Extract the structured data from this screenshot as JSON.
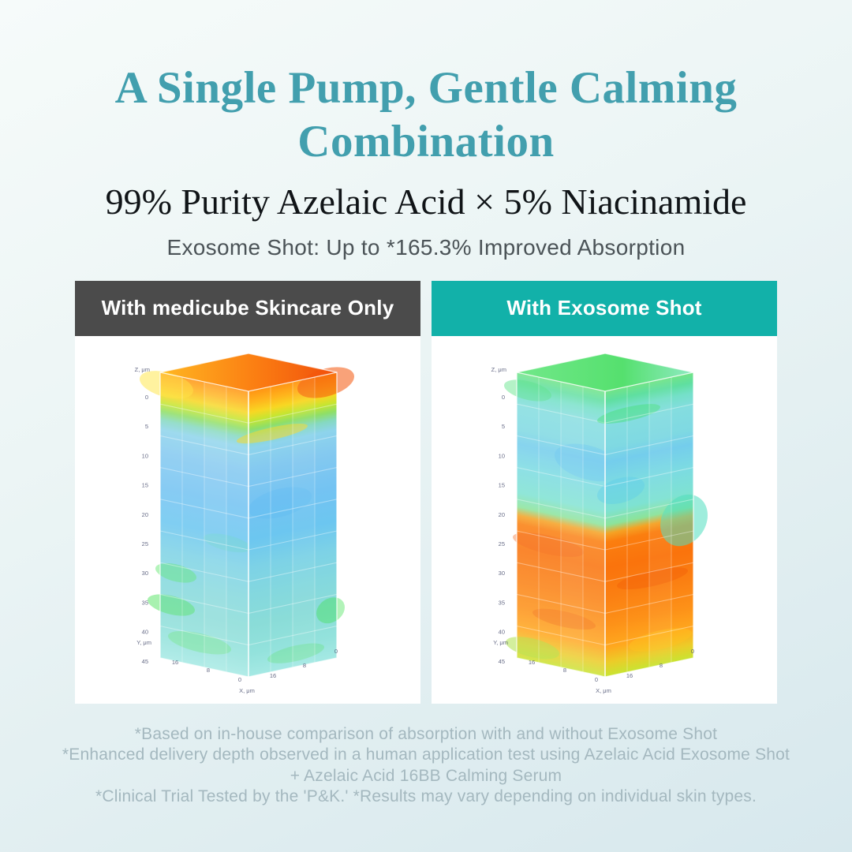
{
  "page": {
    "title_line1": "A Single Pump, Gentle Calming",
    "title_line2": "Combination",
    "subtitle": "99% Purity Azelaic Acid × 5% Niacinamide",
    "tagline": "Exosome Shot: Up to *165.3% Improved Absorption"
  },
  "colors": {
    "title_teal": "#429fae",
    "subtitle_black": "#101417",
    "tagline_gray": "#4b5357",
    "panel_left_header_bg": "#4b4b4b",
    "panel_right_header_bg": "#12b1a9",
    "header_text": "#ffffff",
    "panel_body_bg": "#ffffff",
    "footnote_gray": "#a4b8bf",
    "background_top": "#f6fbfa",
    "background_bottom": "#d7e8ed"
  },
  "panels": [
    {
      "label": "With medicube Skincare Only"
    },
    {
      "label": "With Exosome Shot"
    }
  ],
  "chart_data": [
    {
      "type": "heatmap",
      "title": "With medicube Skincare Only",
      "description": "3D skin-volume absorption map; ingredient concentration (warm colors) stays at the surface layer and upper 0-8 μm only",
      "axes": {
        "z_label": "Z, μm",
        "y_label": "Y, μm",
        "x_label": "X, μm",
        "z_ticks": [
          0,
          5,
          10,
          15,
          20,
          25,
          30,
          35,
          40,
          45
        ],
        "y_ticks": [
          16,
          8,
          0
        ],
        "x_ticks": [
          16,
          8,
          0
        ],
        "z_range_um": [
          0,
          45
        ],
        "xy_range_um": [
          0,
          16
        ]
      },
      "layers": [
        {
          "depth_um": [
            0,
            4
          ],
          "intensity": "high",
          "color": "#ff8e1f",
          "note": "orange-red surface accumulation"
        },
        {
          "depth_um": [
            4,
            8
          ],
          "intensity": "medium",
          "color": "#c6e531",
          "note": "yellow-green band"
        },
        {
          "depth_um": [
            8,
            45
          ],
          "intensity": "low",
          "color": "#7cc9f0",
          "note": "light blue/cyan, scattered green patches near 32-44 μm"
        }
      ]
    },
    {
      "type": "heatmap",
      "title": "With Exosome Shot",
      "description": "3D skin-volume absorption map; ingredient concentration (warm colors) penetrates deep, saturating 22-45 μm",
      "axes": {
        "z_label": "Z, μm",
        "y_label": "Y, μm",
        "x_label": "X, μm",
        "z_ticks": [
          0,
          5,
          10,
          15,
          20,
          25,
          30,
          35,
          40,
          45
        ],
        "y_ticks": [
          16,
          8,
          0
        ],
        "x_ticks": [
          16,
          8,
          0
        ],
        "z_range_um": [
          0,
          45
        ],
        "xy_range_um": [
          0,
          16
        ]
      },
      "layers": [
        {
          "depth_um": [
            0,
            3
          ],
          "intensity": "medium",
          "color": "#6fe08c",
          "note": "green surface"
        },
        {
          "depth_um": [
            3,
            22
          ],
          "intensity": "low-medium",
          "color": "#7fdcd9",
          "note": "cyan/turquoise with blue patch near 8-12 μm"
        },
        {
          "depth_um": [
            22,
            43
          ],
          "intensity": "high",
          "color": "#fb7e0f",
          "note": "strong orange-red deep absorption zone"
        },
        {
          "depth_um": [
            43,
            45
          ],
          "intensity": "medium",
          "color": "#cfe23c",
          "note": "yellow-green bottom face"
        }
      ]
    }
  ],
  "footnotes": [
    "*Based on in-house comparison of absorption with and without Exosome Shot",
    "*Enhanced delivery depth observed in a human application test using Azelaic Acid Exosome Shot",
    "+ Azelaic Acid 16BB Calming Serum",
    "*Clinical Trial Tested by the 'P&K.' *Results may vary depending on individual skin types."
  ]
}
